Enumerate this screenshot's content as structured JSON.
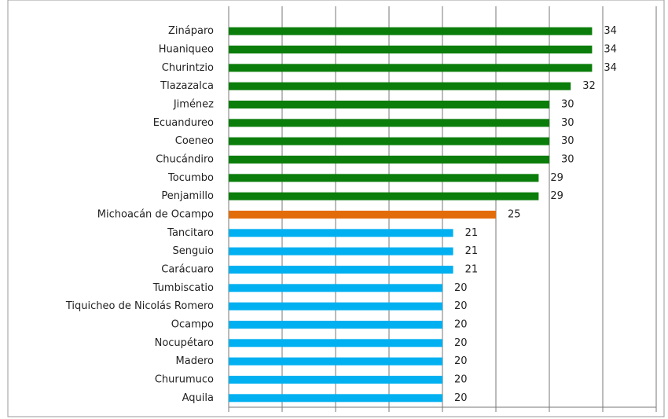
{
  "chart_data": {
    "type": "bar",
    "orientation": "horizontal",
    "categories": [
      "Zináparo",
      "Huaniqueo",
      "Churintzio",
      "Tlazazalca",
      "Jiménez",
      "Ecuandureo",
      "Coeneo",
      "Chucándiro",
      "Tocumbo",
      "Penjamillo",
      "Michoacán de Ocampo",
      "Tancitaro",
      "Senguio",
      "Carácuaro",
      "Tumbiscatio",
      "Tiquicheo de Nicolás Romero",
      "Ocampo",
      "Nocupétaro",
      "Madero",
      "Churumuco",
      "Aquila"
    ],
    "values": [
      34,
      34,
      34,
      32,
      30,
      30,
      30,
      30,
      29,
      29,
      25,
      21,
      21,
      21,
      20,
      20,
      20,
      20,
      20,
      20,
      20
    ],
    "colors": [
      "#0a7d0a",
      "#0a7d0a",
      "#0a7d0a",
      "#0a7d0a",
      "#0a7d0a",
      "#0a7d0a",
      "#0a7d0a",
      "#0a7d0a",
      "#0a7d0a",
      "#0a7d0a",
      "#e36c0a",
      "#00b0f0",
      "#00b0f0",
      "#00b0f0",
      "#00b0f0",
      "#00b0f0",
      "#00b0f0",
      "#00b0f0",
      "#00b0f0",
      "#00b0f0",
      "#00b0f0"
    ],
    "xlim": [
      0,
      40
    ],
    "xticks": [
      0,
      5,
      10,
      15,
      20,
      25,
      30,
      35,
      40
    ],
    "grid": true
  }
}
